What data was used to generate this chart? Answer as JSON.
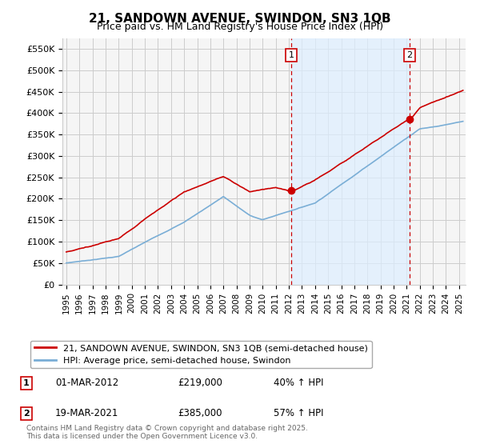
{
  "title": "21, SANDOWN AVENUE, SWINDON, SN3 1QB",
  "subtitle": "Price paid vs. HM Land Registry's House Price Index (HPI)",
  "ylabel_ticks": [
    "£0",
    "£50K",
    "£100K",
    "£150K",
    "£200K",
    "£250K",
    "£300K",
    "£350K",
    "£400K",
    "£450K",
    "£500K",
    "£550K"
  ],
  "ytick_values": [
    0,
    50000,
    100000,
    150000,
    200000,
    250000,
    300000,
    350000,
    400000,
    450000,
    500000,
    550000
  ],
  "ylim": [
    0,
    575000
  ],
  "xlim_start": 1994.7,
  "xlim_end": 2025.5,
  "marker1_x": 2012.17,
  "marker1_y": 219000,
  "marker1_label": "1",
  "marker2_x": 2021.22,
  "marker2_y": 385000,
  "marker2_label": "2",
  "sale1_date": "01-MAR-2012",
  "sale1_price": "£219,000",
  "sale1_note": "40% ↑ HPI",
  "sale2_date": "19-MAR-2021",
  "sale2_price": "£385,000",
  "sale2_note": "57% ↑ HPI",
  "legend_line1": "21, SANDOWN AVENUE, SWINDON, SN3 1QB (semi-detached house)",
  "legend_line2": "HPI: Average price, semi-detached house, Swindon",
  "footer": "Contains HM Land Registry data © Crown copyright and database right 2025.\nThis data is licensed under the Open Government Licence v3.0.",
  "line_color_red": "#cc0000",
  "line_color_blue": "#7aaed6",
  "shade_color": "#ddeeff",
  "bg_color": "#f5f5f5",
  "grid_color": "#cccccc",
  "vline_color": "#cc0000",
  "marker_box_color": "#cc0000"
}
